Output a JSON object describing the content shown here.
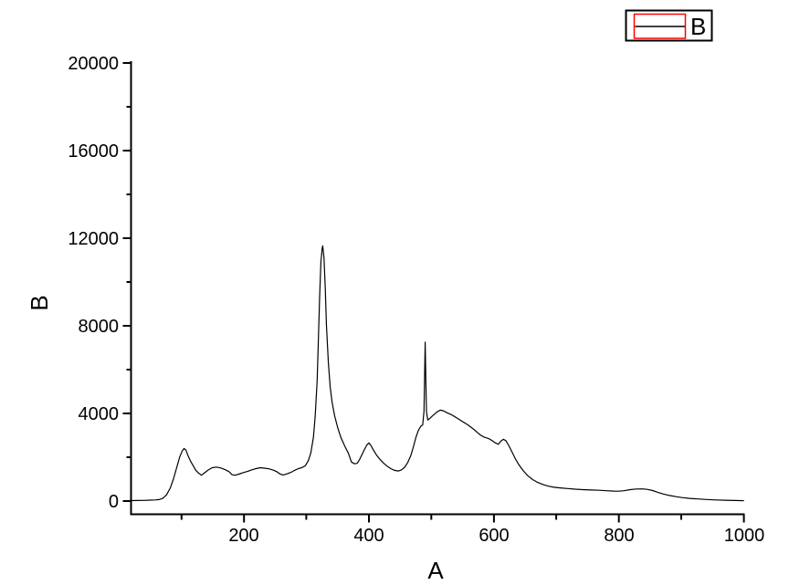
{
  "chart_data": {
    "type": "line",
    "title": "",
    "xlabel": "A",
    "ylabel": "B",
    "xlim": [
      20,
      1000
    ],
    "ylim": [
      -600,
      20000
    ],
    "grid": false,
    "background_color": "#ffffff",
    "axis_color": "#000000",
    "x_major_ticks": [
      200,
      400,
      600,
      800,
      1000
    ],
    "x_minor_ticks": [
      100,
      300,
      500,
      700,
      900
    ],
    "y_major_ticks": [
      0,
      4000,
      8000,
      12000,
      16000,
      20000
    ],
    "y_minor_ticks": [
      2000,
      6000,
      10000,
      14000,
      18000
    ],
    "legend": {
      "position": "top-right",
      "label": "B",
      "box_border_color": "#000000",
      "symbol_box_color": "#ff0000",
      "symbol_line_color": "#000000"
    },
    "series": [
      {
        "name": "B",
        "color": "#000000",
        "points": [
          [
            20,
            20
          ],
          [
            30,
            25
          ],
          [
            40,
            30
          ],
          [
            50,
            40
          ],
          [
            58,
            50
          ],
          [
            64,
            65
          ],
          [
            70,
            120
          ],
          [
            76,
            280
          ],
          [
            82,
            600
          ],
          [
            87,
            1000
          ],
          [
            92,
            1500
          ],
          [
            97,
            2000
          ],
          [
            101,
            2280
          ],
          [
            104,
            2400
          ],
          [
            107,
            2330
          ],
          [
            110,
            2100
          ],
          [
            114,
            1840
          ],
          [
            118,
            1640
          ],
          [
            123,
            1400
          ],
          [
            128,
            1260
          ],
          [
            132,
            1180
          ],
          [
            137,
            1290
          ],
          [
            143,
            1420
          ],
          [
            149,
            1520
          ],
          [
            156,
            1550
          ],
          [
            163,
            1510
          ],
          [
            170,
            1430
          ],
          [
            176,
            1340
          ],
          [
            181,
            1200
          ],
          [
            186,
            1180
          ],
          [
            192,
            1230
          ],
          [
            199,
            1300
          ],
          [
            206,
            1360
          ],
          [
            212,
            1420
          ],
          [
            219,
            1480
          ],
          [
            226,
            1520
          ],
          [
            233,
            1500
          ],
          [
            240,
            1470
          ],
          [
            247,
            1410
          ],
          [
            253,
            1330
          ],
          [
            258,
            1230
          ],
          [
            263,
            1190
          ],
          [
            269,
            1240
          ],
          [
            275,
            1310
          ],
          [
            281,
            1400
          ],
          [
            287,
            1480
          ],
          [
            293,
            1530
          ],
          [
            298,
            1610
          ],
          [
            303,
            1850
          ],
          [
            307,
            2200
          ],
          [
            311,
            2900
          ],
          [
            314,
            3900
          ],
          [
            317,
            5500
          ],
          [
            319,
            7300
          ],
          [
            321,
            9300
          ],
          [
            323,
            10900
          ],
          [
            325,
            11500
          ],
          [
            326,
            11650
          ],
          [
            328,
            11100
          ],
          [
            330,
            9700
          ],
          [
            332,
            8000
          ],
          [
            335,
            6300
          ],
          [
            338,
            5200
          ],
          [
            341,
            4500
          ],
          [
            345,
            3900
          ],
          [
            350,
            3350
          ],
          [
            355,
            2900
          ],
          [
            361,
            2520
          ],
          [
            367,
            2180
          ],
          [
            372,
            1780
          ],
          [
            377,
            1700
          ],
          [
            381,
            1720
          ],
          [
            385,
            1900
          ],
          [
            389,
            2130
          ],
          [
            393,
            2370
          ],
          [
            397,
            2580
          ],
          [
            400,
            2650
          ],
          [
            403,
            2540
          ],
          [
            407,
            2330
          ],
          [
            412,
            2100
          ],
          [
            417,
            1920
          ],
          [
            423,
            1740
          ],
          [
            429,
            1590
          ],
          [
            435,
            1480
          ],
          [
            441,
            1400
          ],
          [
            447,
            1370
          ],
          [
            452,
            1420
          ],
          [
            457,
            1540
          ],
          [
            462,
            1760
          ],
          [
            467,
            2080
          ],
          [
            471,
            2460
          ],
          [
            475,
            2900
          ],
          [
            479,
            3220
          ],
          [
            483,
            3420
          ],
          [
            486,
            3480
          ],
          [
            488,
            4100
          ],
          [
            489,
            5800
          ],
          [
            490,
            7250
          ],
          [
            491,
            5600
          ],
          [
            492,
            4100
          ],
          [
            494,
            3700
          ],
          [
            497,
            3760
          ],
          [
            501,
            3870
          ],
          [
            505,
            3970
          ],
          [
            509,
            4070
          ],
          [
            514,
            4150
          ],
          [
            519,
            4120
          ],
          [
            525,
            4030
          ],
          [
            532,
            3940
          ],
          [
            539,
            3820
          ],
          [
            546,
            3690
          ],
          [
            553,
            3570
          ],
          [
            560,
            3440
          ],
          [
            567,
            3290
          ],
          [
            573,
            3140
          ],
          [
            579,
            3000
          ],
          [
            585,
            2910
          ],
          [
            591,
            2860
          ],
          [
            597,
            2760
          ],
          [
            602,
            2660
          ],
          [
            607,
            2590
          ],
          [
            611,
            2730
          ],
          [
            615,
            2820
          ],
          [
            619,
            2760
          ],
          [
            624,
            2520
          ],
          [
            629,
            2230
          ],
          [
            634,
            1940
          ],
          [
            640,
            1650
          ],
          [
            647,
            1380
          ],
          [
            654,
            1160
          ],
          [
            662,
            980
          ],
          [
            670,
            850
          ],
          [
            678,
            760
          ],
          [
            687,
            680
          ],
          [
            696,
            630
          ],
          [
            706,
            600
          ],
          [
            718,
            570
          ],
          [
            730,
            540
          ],
          [
            742,
            520
          ],
          [
            755,
            505
          ],
          [
            768,
            490
          ],
          [
            780,
            470
          ],
          [
            792,
            455
          ],
          [
            800,
            450
          ],
          [
            808,
            470
          ],
          [
            818,
            520
          ],
          [
            828,
            550
          ],
          [
            838,
            555
          ],
          [
            846,
            530
          ],
          [
            854,
            480
          ],
          [
            862,
            400
          ],
          [
            871,
            320
          ],
          [
            881,
            255
          ],
          [
            891,
            200
          ],
          [
            901,
            160
          ],
          [
            913,
            120
          ],
          [
            926,
            95
          ],
          [
            940,
            70
          ],
          [
            955,
            50
          ],
          [
            970,
            38
          ],
          [
            985,
            25
          ],
          [
            1000,
            15
          ]
        ]
      }
    ]
  }
}
